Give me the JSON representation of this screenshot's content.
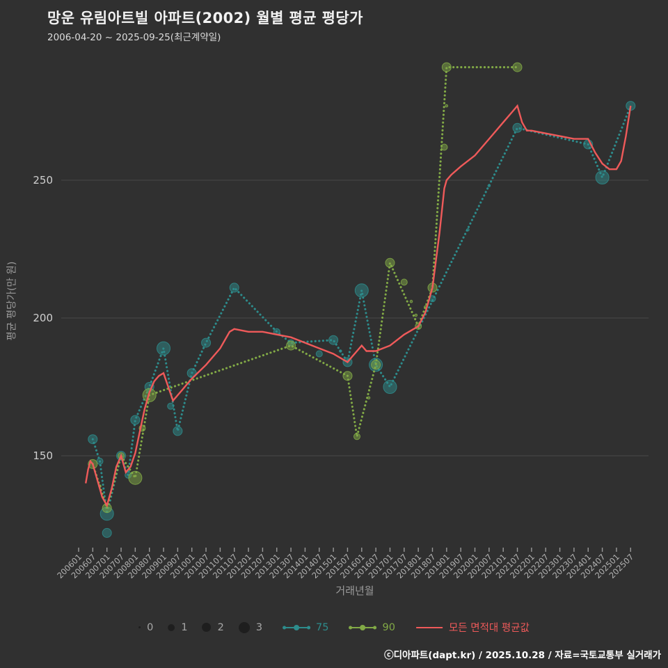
{
  "header": {
    "title": "망운 유림아트빌 아파트(2002) 월별 평균 평당가",
    "subtitle": "2006-04-20 ~ 2025-09-25(최근계약일)"
  },
  "footer": {
    "credit": "ⓒ디아파트(dapt.kr) / 2025.10.28 / 자료=국토교통부 실거래가"
  },
  "legend": {
    "sizes": [
      "0",
      "1",
      "2",
      "3"
    ],
    "series": [
      {
        "label": "75",
        "color": "#2d8c8c"
      },
      {
        "label": "90",
        "color": "#82aa46"
      },
      {
        "label": "모든 면적대 평균값",
        "color": "#ef5a5a"
      }
    ]
  },
  "chart_data": {
    "type": "scatter",
    "title": "망운 유림아트빌 아파트(2002) 월별 평균 평당가",
    "subtitle": "2006-04-20 ~ 2025-09-25(최근계약일)",
    "xlabel": "거래년월",
    "ylabel": "평균 평당가(만 원)",
    "y_ticks": [
      150,
      200,
      250
    ],
    "ylim": [
      115,
      295
    ],
    "grid": "horizontal-only",
    "legend_position": "bottom-center",
    "x_ticks": [
      "200601",
      "200607",
      "200701",
      "200707",
      "200801",
      "200807",
      "200901",
      "200907",
      "201001",
      "201007",
      "201101",
      "201107",
      "201201",
      "201207",
      "201301",
      "201307",
      "201401",
      "201407",
      "201501",
      "201507",
      "201601",
      "201607",
      "201701",
      "201707",
      "201801",
      "201807",
      "201901",
      "201907",
      "202001",
      "202007",
      "202101",
      "202107",
      "202201",
      "202207",
      "202301",
      "202307",
      "202401",
      "202407",
      "202501",
      "202507"
    ],
    "point_sizes_legend": [
      0,
      1,
      2,
      3
    ],
    "series": [
      {
        "id": "75",
        "name": "75",
        "color": "#2d8c8c",
        "style": "dotted",
        "markers": true,
        "points": [
          [
            200607,
            156,
            2
          ],
          [
            200610,
            148,
            1
          ],
          [
            200701,
            129,
            3
          ],
          [
            200707,
            150,
            2
          ],
          [
            200710,
            143,
            1
          ],
          [
            200801,
            163,
            2
          ],
          [
            200807,
            175,
            2
          ],
          [
            200901,
            189,
            3
          ],
          [
            200907,
            159,
            2
          ],
          [
            201001,
            180,
            2
          ],
          [
            201007,
            191,
            2
          ],
          [
            201107,
            211,
            2
          ],
          [
            201301,
            195,
            1
          ],
          [
            201307,
            191,
            1
          ],
          [
            201501,
            192,
            2
          ],
          [
            201507,
            184,
            2
          ],
          [
            201601,
            210,
            3
          ],
          [
            201607,
            183,
            3
          ],
          [
            201701,
            175,
            3
          ],
          [
            202107,
            269,
            2
          ],
          [
            202401,
            263,
            2
          ],
          [
            202407,
            251,
            3
          ],
          [
            202507,
            277,
            2
          ]
        ],
        "extra_points": [
          [
            200701,
            122,
            2
          ],
          [
            200904,
            168,
            1
          ],
          [
            201407,
            187,
            1
          ],
          [
            201504,
            188,
            0
          ],
          [
            201807,
            207,
            1
          ],
          [
            201910,
            232,
            0
          ],
          [
            202007,
            248,
            0
          ]
        ]
      },
      {
        "id": "90",
        "name": "90",
        "color": "#82aa46",
        "style": "dotted",
        "markers": true,
        "points": [
          [
            200607,
            147,
            2
          ],
          [
            200701,
            131,
            2
          ],
          [
            200707,
            150,
            1
          ],
          [
            200801,
            142,
            3
          ],
          [
            200807,
            172,
            3
          ],
          [
            201307,
            190,
            2
          ],
          [
            201507,
            179,
            2
          ],
          [
            201511,
            157,
            1
          ],
          [
            201607,
            183,
            2
          ],
          [
            201701,
            220,
            2
          ],
          [
            201801,
            197,
            1
          ],
          [
            201807,
            211,
            2
          ],
          [
            201901,
            291,
            2
          ],
          [
            202107,
            291,
            2
          ]
        ],
        "extra_points": [
          [
            200610,
            139,
            0
          ],
          [
            200804,
            160,
            1
          ],
          [
            201604,
            171,
            0
          ],
          [
            201707,
            213,
            1
          ],
          [
            201710,
            206,
            0
          ],
          [
            201712,
            201,
            0
          ],
          [
            201804,
            204,
            0
          ],
          [
            201812,
            262,
            1
          ],
          [
            201901,
            277,
            0
          ]
        ]
      },
      {
        "id": "avg",
        "name": "모든 면적대 평균값",
        "color": "#ef5a5a",
        "style": "solid",
        "markers": false,
        "points": [
          [
            200604,
            140
          ],
          [
            200605,
            145
          ],
          [
            200606,
            148
          ],
          [
            200607,
            147
          ],
          [
            200609,
            141
          ],
          [
            200611,
            135
          ],
          [
            200701,
            132
          ],
          [
            200703,
            138
          ],
          [
            200705,
            146
          ],
          [
            200707,
            150
          ],
          [
            200709,
            144
          ],
          [
            200711,
            146
          ],
          [
            200801,
            151
          ],
          [
            200803,
            159
          ],
          [
            200805,
            167
          ],
          [
            200807,
            173
          ],
          [
            200809,
            177
          ],
          [
            200811,
            179
          ],
          [
            200901,
            180
          ],
          [
            200903,
            175
          ],
          [
            200905,
            170
          ],
          [
            200907,
            172
          ],
          [
            200909,
            174
          ],
          [
            200911,
            176
          ],
          [
            201001,
            178
          ],
          [
            201007,
            183
          ],
          [
            201101,
            189
          ],
          [
            201105,
            195
          ],
          [
            201107,
            196
          ],
          [
            201201,
            195
          ],
          [
            201207,
            195
          ],
          [
            201301,
            194
          ],
          [
            201307,
            193
          ],
          [
            201401,
            191
          ],
          [
            201407,
            189
          ],
          [
            201501,
            187
          ],
          [
            201507,
            184
          ],
          [
            201509,
            186
          ],
          [
            201511,
            188
          ],
          [
            201601,
            190
          ],
          [
            201603,
            188
          ],
          [
            201607,
            188
          ],
          [
            201701,
            190
          ],
          [
            201707,
            194
          ],
          [
            201801,
            197
          ],
          [
            201804,
            202
          ],
          [
            201807,
            211
          ],
          [
            201810,
            231
          ],
          [
            201812,
            247
          ],
          [
            201901,
            250
          ],
          [
            201903,
            252
          ],
          [
            201907,
            255
          ],
          [
            202001,
            259
          ],
          [
            202007,
            265
          ],
          [
            202101,
            271
          ],
          [
            202105,
            275
          ],
          [
            202107,
            277
          ],
          [
            202109,
            271
          ],
          [
            202111,
            268
          ],
          [
            202201,
            268
          ],
          [
            202207,
            267
          ],
          [
            202301,
            266
          ],
          [
            202307,
            265
          ],
          [
            202401,
            265
          ],
          [
            202404,
            260
          ],
          [
            202407,
            256
          ],
          [
            202410,
            254
          ],
          [
            202501,
            254
          ],
          [
            202503,
            257
          ],
          [
            202505,
            266
          ],
          [
            202507,
            277
          ]
        ]
      }
    ]
  }
}
